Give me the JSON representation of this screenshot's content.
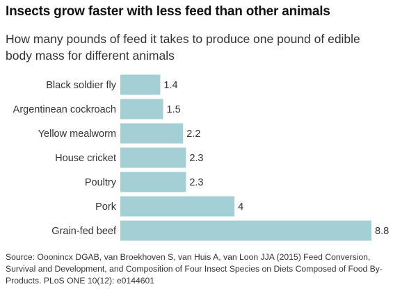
{
  "header": {
    "title": "Insects grow faster with less feed than other animals",
    "subtitle": "How many pounds of feed it takes to produce one pound of edible body mass for different animals"
  },
  "chart_data": {
    "type": "bar",
    "orientation": "horizontal",
    "categories": [
      "Black soldier fly",
      "Argentinean cockroach",
      "Yellow mealworm",
      "House cricket",
      "Poultry",
      "Pork",
      "Grain-fed beef"
    ],
    "values": [
      1.4,
      1.5,
      2.2,
      2.3,
      2.3,
      4,
      8.8
    ],
    "value_labels": [
      "1.4",
      "1.5",
      "2.2",
      "2.3",
      "2.3",
      "4",
      "8.8"
    ],
    "xlim": [
      0,
      8.8
    ],
    "grid": false,
    "bar_color": "#a4cfd4"
  },
  "footer": {
    "source": "Source: Ooonincx DGAB, van Broekhoven S, van Huis A, van Loon JJA (2015) Feed Conversion, Survival and Development, and Composition of Four Insect Species on Diets Composed of Food By-Products. PLoS ONE 10(12): e0144601"
  }
}
